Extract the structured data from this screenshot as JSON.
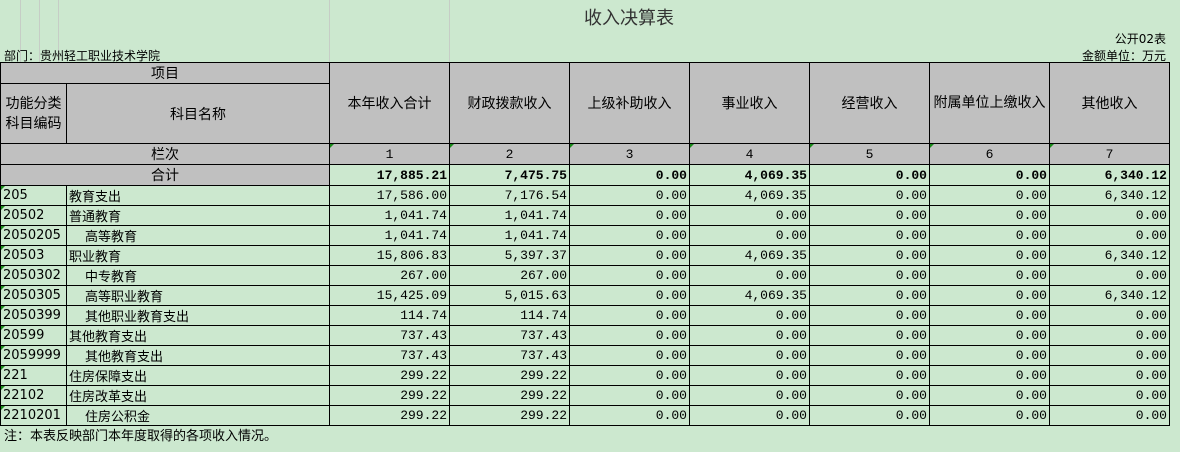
{
  "title": "收入决算表",
  "form_no": "公开02表",
  "department": "部门：贵州轻工职业技术学院",
  "unit": "金额单位：万元",
  "header": {
    "item": "项目",
    "code": "功能分类科目编码",
    "name": "科目名称",
    "columns": [
      "本年收入合计",
      "财政拨款收入",
      "上级补助收入",
      "事业收入",
      "经营收入",
      "附属单位上缴收入",
      "其他收入"
    ],
    "row_index_label": "栏次",
    "column_numbers": [
      "1",
      "2",
      "3",
      "4",
      "5",
      "6",
      "7"
    ]
  },
  "total": {
    "label": "合计",
    "values": [
      "17,885.21",
      "7,475.75",
      "0.00",
      "4,069.35",
      "0.00",
      "0.00",
      "6,340.12"
    ]
  },
  "rows": [
    {
      "code": "205",
      "name": "教育支出",
      "indent": false,
      "values": [
        "17,586.00",
        "7,176.54",
        "0.00",
        "4,069.35",
        "0.00",
        "0.00",
        "6,340.12"
      ]
    },
    {
      "code": "20502",
      "name": "普通教育",
      "indent": false,
      "values": [
        "1,041.74",
        "1,041.74",
        "0.00",
        "0.00",
        "0.00",
        "0.00",
        "0.00"
      ]
    },
    {
      "code": "2050205",
      "name": "高等教育",
      "indent": true,
      "values": [
        "1,041.74",
        "1,041.74",
        "0.00",
        "0.00",
        "0.00",
        "0.00",
        "0.00"
      ]
    },
    {
      "code": "20503",
      "name": "职业教育",
      "indent": false,
      "values": [
        "15,806.83",
        "5,397.37",
        "0.00",
        "4,069.35",
        "0.00",
        "0.00",
        "6,340.12"
      ]
    },
    {
      "code": "2050302",
      "name": "中专教育",
      "indent": true,
      "values": [
        "267.00",
        "267.00",
        "0.00",
        "0.00",
        "0.00",
        "0.00",
        "0.00"
      ]
    },
    {
      "code": "2050305",
      "name": "高等职业教育",
      "indent": true,
      "values": [
        "15,425.09",
        "5,015.63",
        "0.00",
        "4,069.35",
        "0.00",
        "0.00",
        "6,340.12"
      ]
    },
    {
      "code": "2050399",
      "name": "其他职业教育支出",
      "indent": true,
      "values": [
        "114.74",
        "114.74",
        "0.00",
        "0.00",
        "0.00",
        "0.00",
        "0.00"
      ]
    },
    {
      "code": "20599",
      "name": "其他教育支出",
      "indent": false,
      "values": [
        "737.43",
        "737.43",
        "0.00",
        "0.00",
        "0.00",
        "0.00",
        "0.00"
      ]
    },
    {
      "code": "2059999",
      "name": "其他教育支出",
      "indent": true,
      "values": [
        "737.43",
        "737.43",
        "0.00",
        "0.00",
        "0.00",
        "0.00",
        "0.00"
      ]
    },
    {
      "code": "221",
      "name": "住房保障支出",
      "indent": false,
      "values": [
        "299.22",
        "299.22",
        "0.00",
        "0.00",
        "0.00",
        "0.00",
        "0.00"
      ]
    },
    {
      "code": "22102",
      "name": "住房改革支出",
      "indent": false,
      "values": [
        "299.22",
        "299.22",
        "0.00",
        "0.00",
        "0.00",
        "0.00",
        "0.00"
      ]
    },
    {
      "code": "2210201",
      "name": "住房公积金",
      "indent": true,
      "values": [
        "299.22",
        "299.22",
        "0.00",
        "0.00",
        "0.00",
        "0.00",
        "0.00"
      ]
    }
  ],
  "note": "注：本表反映部门本年度取得的各项收入情况。",
  "colors": {
    "sheet_bg": "#cce8cf",
    "header_bg": "#c0c0c0",
    "gridline": "#c6cdc6",
    "comment_marker": "#1a8a1a"
  }
}
